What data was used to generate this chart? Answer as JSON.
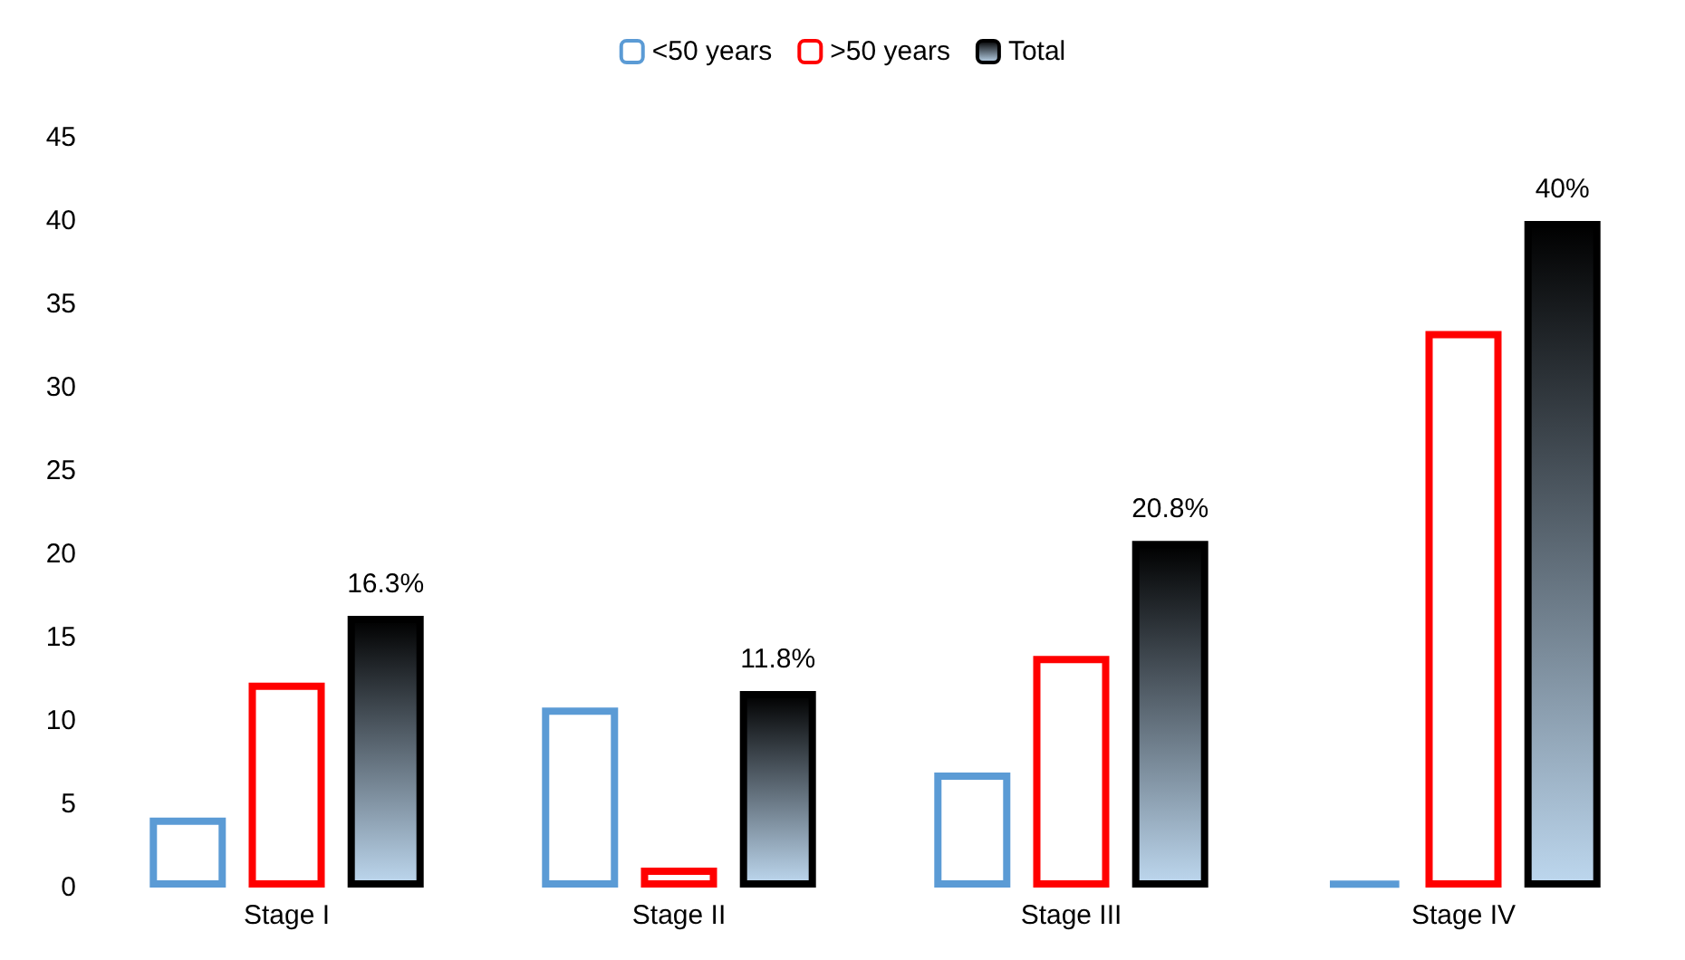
{
  "chart_data": {
    "type": "bar",
    "categories": [
      "Stage I",
      "Stage II",
      "Stage III",
      "Stage IV"
    ],
    "series": [
      {
        "name": "<50 years",
        "color": "#5b9bd5",
        "values": [
          4.2,
          10.8,
          6.9,
          0.4
        ]
      },
      {
        "name": ">50 years",
        "color": "#ff0000",
        "values": [
          12.3,
          1.2,
          13.9,
          33.4
        ]
      },
      {
        "name": "Total",
        "color": "#000000",
        "values": [
          16.3,
          11.8,
          20.8,
          40
        ],
        "value_labels": [
          "16.3%",
          "11.8%",
          "20.8%",
          "40%"
        ]
      }
    ],
    "ylim": [
      0,
      45
    ],
    "yticks": [
      0,
      5,
      10,
      15,
      20,
      25,
      30,
      35,
      40,
      45
    ],
    "grid": false,
    "legend": "top"
  }
}
